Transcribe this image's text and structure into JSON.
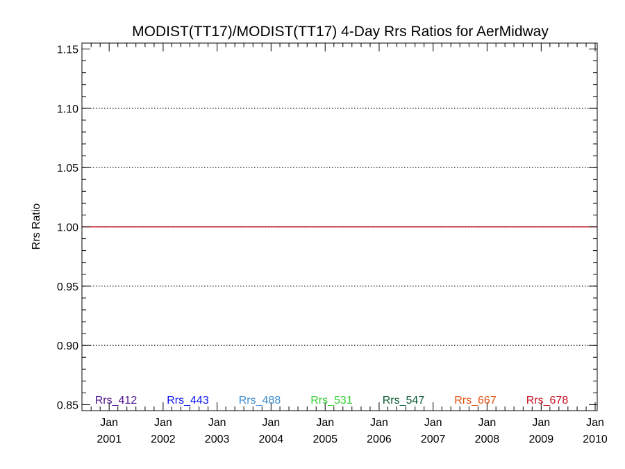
{
  "chart_data": {
    "type": "line",
    "title": "MODIST(TT17)/MODIST(TT17) 4-Day Rrs Ratios for AerMidway",
    "xlabel": "",
    "ylabel": "Rrs Ratio",
    "xlim": [
      "2000-07-01",
      "2010-01-15"
    ],
    "ylim": [
      0.845,
      1.155
    ],
    "y_ticks": [
      "0.85",
      "0.90",
      "0.95",
      "1.00",
      "1.05",
      "1.10",
      "1.15"
    ],
    "x_ticks": [
      {
        "date": "2001-01-01",
        "month": "Jan",
        "year": "2001"
      },
      {
        "date": "2002-01-01",
        "month": "Jan",
        "year": "2002"
      },
      {
        "date": "2003-01-01",
        "month": "Jan",
        "year": "2003"
      },
      {
        "date": "2004-01-01",
        "month": "Jan",
        "year": "2004"
      },
      {
        "date": "2005-01-01",
        "month": "Jan",
        "year": "2005"
      },
      {
        "date": "2006-01-01",
        "month": "Jan",
        "year": "2006"
      },
      {
        "date": "2007-01-01",
        "month": "Jan",
        "year": "2007"
      },
      {
        "date": "2008-01-01",
        "month": "Jan",
        "year": "2008"
      },
      {
        "date": "2009-01-01",
        "month": "Jan",
        "year": "2009"
      },
      {
        "date": "2010-01-01",
        "month": "Jan",
        "year": "2010"
      }
    ],
    "grid": "dotted horizontal",
    "reference_line": {
      "y": 1.0,
      "color": "#c0000f"
    },
    "legend_position": "bottom",
    "series": [
      {
        "name": "Rrs_412",
        "color": "#4b0f8c",
        "values": []
      },
      {
        "name": "Rrs_443",
        "color": "#0a14f0",
        "values": []
      },
      {
        "name": "Rrs_488",
        "color": "#3c8cd2",
        "values": []
      },
      {
        "name": "Rrs_531",
        "color": "#32d232",
        "values": []
      },
      {
        "name": "Rrs_547",
        "color": "#0a5a32",
        "values": []
      },
      {
        "name": "Rrs_667",
        "color": "#e1500f",
        "values": []
      },
      {
        "name": "Rrs_678",
        "color": "#c80f23",
        "values": []
      }
    ]
  }
}
